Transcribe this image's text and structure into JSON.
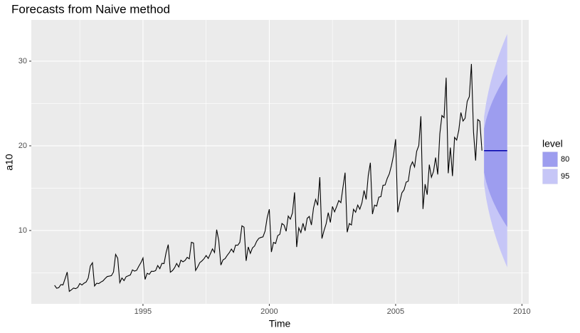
{
  "chart_data": {
    "type": "line",
    "title": "Forecasts from Naive method",
    "x_label": "Time",
    "y_label": "a10",
    "xlim": [
      1990.58,
      2010.27
    ],
    "ylim": [
      1.34,
      34.87
    ],
    "xticks": [
      1995,
      2000,
      2005,
      2010
    ],
    "yticks": [
      10,
      20,
      30
    ],
    "x_minor_ticks": [
      1992.5,
      1997.5,
      2002.5,
      2007.5
    ],
    "y_minor_ticks": [
      5,
      15,
      25
    ],
    "grid": true,
    "legend_position": "right",
    "legend_title": "level",
    "series": [
      {
        "color": "#000000",
        "x": [
          1991.5,
          1991.583,
          1991.667,
          1991.75,
          1991.833,
          1991.917,
          1992,
          1992.083,
          1992.167,
          1992.25,
          1992.333,
          1992.417,
          1992.5,
          1992.583,
          1992.667,
          1992.75,
          1992.833,
          1992.917,
          1993,
          1993.083,
          1993.167,
          1993.25,
          1993.333,
          1993.417,
          1993.5,
          1993.583,
          1993.667,
          1993.75,
          1993.833,
          1993.917,
          1994,
          1994.083,
          1994.167,
          1994.25,
          1994.333,
          1994.417,
          1994.5,
          1994.583,
          1994.667,
          1994.75,
          1994.833,
          1994.917,
          1995,
          1995.083,
          1995.167,
          1995.25,
          1995.333,
          1995.417,
          1995.5,
          1995.583,
          1995.667,
          1995.75,
          1995.833,
          1995.917,
          1996,
          1996.083,
          1996.167,
          1996.25,
          1996.333,
          1996.417,
          1996.5,
          1996.583,
          1996.667,
          1996.75,
          1996.833,
          1996.917,
          1997,
          1997.083,
          1997.167,
          1997.25,
          1997.333,
          1997.417,
          1997.5,
          1997.583,
          1997.667,
          1997.75,
          1997.833,
          1997.917,
          1998,
          1998.083,
          1998.167,
          1998.25,
          1998.333,
          1998.417,
          1998.5,
          1998.583,
          1998.667,
          1998.75,
          1998.833,
          1998.917,
          1999,
          1999.083,
          1999.167,
          1999.25,
          1999.333,
          1999.417,
          1999.5,
          1999.583,
          1999.667,
          1999.75,
          1999.833,
          1999.917,
          2000,
          2000.083,
          2000.167,
          2000.25,
          2000.333,
          2000.417,
          2000.5,
          2000.583,
          2000.667,
          2000.75,
          2000.833,
          2000.917,
          2001,
          2001.083,
          2001.167,
          2001.25,
          2001.333,
          2001.417,
          2001.5,
          2001.583,
          2001.667,
          2001.75,
          2001.833,
          2001.917,
          2002,
          2002.083,
          2002.167,
          2002.25,
          2002.333,
          2002.417,
          2002.5,
          2002.583,
          2002.667,
          2002.75,
          2002.833,
          2002.917,
          2003,
          2003.083,
          2003.167,
          2003.25,
          2003.333,
          2003.417,
          2003.5,
          2003.583,
          2003.667,
          2003.75,
          2003.833,
          2003.917,
          2004,
          2004.083,
          2004.167,
          2004.25,
          2004.333,
          2004.417,
          2004.5,
          2004.583,
          2004.667,
          2004.75,
          2004.833,
          2004.917,
          2005,
          2005.083,
          2005.167,
          2005.25,
          2005.333,
          2005.417,
          2005.5,
          2005.583,
          2005.667,
          2005.75,
          2005.833,
          2005.917,
          2006,
          2006.083,
          2006.167,
          2006.25,
          2006.333,
          2006.417,
          2006.5,
          2006.583,
          2006.667,
          2006.75,
          2006.833,
          2006.917,
          2007,
          2007.083,
          2007.167,
          2007.25,
          2007.333,
          2007.417,
          2007.5,
          2007.583,
          2007.667,
          2007.75,
          2007.833,
          2007.917,
          2008,
          2008.083,
          2008.167,
          2008.25,
          2008.333,
          2008.417
        ],
        "values": [
          3.53,
          3.18,
          3.25,
          3.61,
          3.57,
          4.31,
          5.09,
          2.81,
          2.99,
          3.2,
          3.13,
          3.27,
          3.74,
          3.56,
          3.78,
          3.92,
          4.39,
          5.81,
          6.19,
          3.45,
          3.77,
          3.73,
          3.91,
          4.05,
          4.32,
          4.56,
          4.61,
          4.67,
          5.09,
          7.18,
          6.73,
          3.84,
          4.39,
          4.08,
          4.54,
          4.65,
          4.75,
          5.35,
          5.2,
          5.3,
          5.77,
          6.2,
          6.75,
          4.22,
          4.95,
          4.82,
          5.19,
          5.17,
          5.26,
          5.86,
          5.49,
          6.12,
          6.09,
          7.42,
          8.33,
          5.07,
          5.26,
          5.6,
          6.11,
          5.69,
          6.49,
          6.3,
          6.47,
          6.83,
          6.65,
          8.61,
          8.52,
          5.28,
          5.71,
          6.21,
          6.41,
          6.67,
          7.05,
          6.7,
          7.25,
          7.82,
          7.4,
          10.1,
          8.8,
          5.92,
          6.53,
          6.68,
          7.06,
          7.38,
          7.81,
          7.43,
          8.28,
          8.26,
          8.6,
          10.56,
          10.39,
          6.42,
          8.06,
          7.3,
          7.94,
          8.17,
          8.72,
          9.07,
          9.18,
          9.25,
          9.93,
          11.53,
          12.51,
          7.46,
          8.59,
          8.47,
          9.39,
          9.56,
          10.83,
          10.64,
          9.91,
          11.71,
          11.34,
          12.08,
          14.5,
          8.05,
          10.31,
          9.75,
          10.85,
          9.96,
          11.44,
          11.66,
          10.65,
          12.65,
          13.67,
          12.97,
          16.3,
          9.05,
          10.0,
          10.79,
          12.11,
          10.95,
          12.84,
          12.2,
          12.85,
          13.54,
          13.29,
          15.13,
          16.83,
          9.8,
          10.82,
          10.65,
          12.51,
          12.16,
          13.0,
          12.52,
          13.27,
          14.73,
          13.67,
          16.5,
          18.0,
          11.94,
          13.0,
          12.88,
          13.94,
          13.99,
          15.34,
          15.37,
          16.14,
          16.69,
          17.64,
          18.87,
          20.78,
          12.15,
          13.4,
          14.46,
          14.8,
          15.71,
          15.83,
          17.55,
          18.1,
          17.5,
          19.35,
          20.03,
          23.49,
          12.54,
          15.47,
          14.23,
          17.78,
          16.29,
          16.98,
          18.61,
          16.62,
          21.43,
          23.58,
          23.33,
          28.04,
          16.76,
          19.79,
          16.43,
          21.0,
          20.68,
          21.83,
          23.93,
          22.93,
          23.26,
          25.25,
          25.81,
          29.67,
          21.65,
          18.26,
          23.11,
          22.91,
          19.43
        ]
      },
      {
        "color": "#0000aa",
        "x": [
          2008.5,
          2008.583,
          2008.667,
          2008.75,
          2008.833,
          2008.917,
          2009,
          2009.083,
          2009.167,
          2009.25,
          2009.333,
          2009.417
        ],
        "values": [
          19.43,
          19.43,
          19.43,
          19.43,
          19.43,
          19.43,
          19.43,
          19.43,
          19.43,
          19.43,
          19.43,
          19.43
        ]
      }
    ],
    "intervals": [
      {
        "name": "80",
        "color": "#9d9def",
        "lower": [
          16.83,
          15.75,
          14.92,
          14.23,
          13.61,
          13.06,
          12.55,
          12.07,
          11.63,
          11.2,
          10.8,
          10.42
        ],
        "upper": [
          22.03,
          23.11,
          23.94,
          24.63,
          25.25,
          25.8,
          26.31,
          26.79,
          27.23,
          27.66,
          28.06,
          28.44
        ]
      },
      {
        "name": "95",
        "color": "#c6c6f7",
        "lower": [
          15.45,
          13.8,
          12.54,
          11.47,
          10.53,
          9.68,
          8.9,
          8.18,
          7.49,
          6.85,
          6.23,
          5.65
        ],
        "upper": [
          23.41,
          25.06,
          26.32,
          27.39,
          28.33,
          29.18,
          29.96,
          30.68,
          31.37,
          32.01,
          32.63,
          33.21
        ]
      }
    ]
  }
}
